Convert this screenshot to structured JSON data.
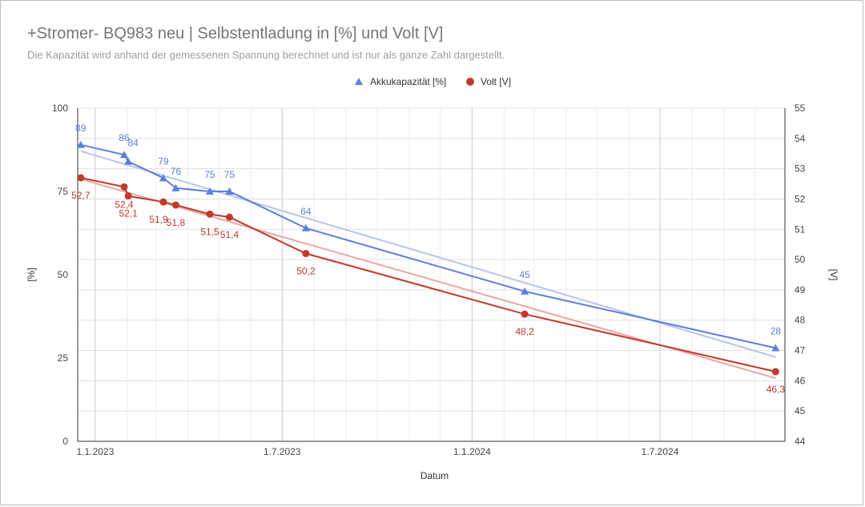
{
  "title": "+Stromer- BQ983 neu | Selbstentladung in [%] und Volt [V]",
  "subtitle": "Die Kapazität wird anhand der gemessenen Spannung berechnet und ist nur als ganze Zahl dargestellt.",
  "colors": {
    "akku": "#5b7fdc",
    "akku_trend": "#b3c5ee",
    "volt": "#c0392b",
    "volt_trend": "#e8a8a0",
    "grid": "#e0e0e0",
    "major_grid": "#cccccc",
    "axis": "#333333"
  },
  "chart_data": {
    "type": "line",
    "xlabel": "Datum",
    "ylabel_left": "[%]",
    "ylabel_right": "[V]",
    "xlim": [
      "2022-12-15",
      "2024-10-30"
    ],
    "ylim_left": [
      0,
      100
    ],
    "ylim_right": [
      44,
      55
    ],
    "x_ticks": [
      {
        "date": "2023-01-01",
        "label": "1.1.2023"
      },
      {
        "date": "2023-07-01",
        "label": "1.7.2023"
      },
      {
        "date": "2024-01-01",
        "label": "1.1.2024"
      },
      {
        "date": "2024-07-01",
        "label": "1.7.2024"
      }
    ],
    "y_ticks_left": [
      {
        "value": 0,
        "label": "0"
      },
      {
        "value": 25,
        "label": "25"
      },
      {
        "value": 50,
        "label": "50"
      },
      {
        "value": 75,
        "label": "75"
      },
      {
        "value": 100,
        "label": "100"
      }
    ],
    "y_ticks_right": [
      {
        "value": 44,
        "label": "44"
      },
      {
        "value": 45,
        "label": "45"
      },
      {
        "value": 46,
        "label": "46"
      },
      {
        "value": 47,
        "label": "47"
      },
      {
        "value": 48,
        "label": "48"
      },
      {
        "value": 49,
        "label": "49"
      },
      {
        "value": 50,
        "label": "50"
      },
      {
        "value": 51,
        "label": "51"
      },
      {
        "value": 52,
        "label": "52"
      },
      {
        "value": 53,
        "label": "53"
      },
      {
        "value": 54,
        "label": "54"
      },
      {
        "value": 55,
        "label": "55"
      }
    ],
    "grid": true,
    "legend_position": "top",
    "series": [
      {
        "name": "Akkukapazität  [%]",
        "axis": "left",
        "marker": "triangle",
        "trendline": true,
        "points": [
          {
            "date": "2022-12-18",
            "value": 89,
            "label": "89"
          },
          {
            "date": "2023-01-29",
            "value": 86,
            "label": "86"
          },
          {
            "date": "2023-02-02",
            "value": 84,
            "label": "84"
          },
          {
            "date": "2023-03-08",
            "value": 79,
            "label": "79"
          },
          {
            "date": "2023-03-20",
            "value": 76,
            "label": "76"
          },
          {
            "date": "2023-04-22",
            "value": 75,
            "label": "75"
          },
          {
            "date": "2023-05-11",
            "value": 75,
            "label": "75"
          },
          {
            "date": "2023-07-24",
            "value": 64,
            "label": "64"
          },
          {
            "date": "2024-02-21",
            "value": 45,
            "label": "45"
          },
          {
            "date": "2024-10-21",
            "value": 28,
            "label": "28"
          }
        ]
      },
      {
        "name": "Volt [V]",
        "axis": "right",
        "marker": "circle",
        "trendline": true,
        "points": [
          {
            "date": "2022-12-18",
            "value": 52.7,
            "label": "52,7"
          },
          {
            "date": "2023-01-29",
            "value": 52.4,
            "label": "52,4"
          },
          {
            "date": "2023-02-02",
            "value": 52.1,
            "label": "52,1"
          },
          {
            "date": "2023-03-08",
            "value": 51.9,
            "label": "51,9"
          },
          {
            "date": "2023-03-20",
            "value": 51.8,
            "label": "51,8"
          },
          {
            "date": "2023-04-22",
            "value": 51.5,
            "label": "51,5"
          },
          {
            "date": "2023-05-11",
            "value": 51.4,
            "label": "51,4"
          },
          {
            "date": "2023-07-24",
            "value": 50.2,
            "label": "50,2"
          },
          {
            "date": "2024-02-21",
            "value": 48.2,
            "label": "48,2"
          },
          {
            "date": "2024-10-21",
            "value": 46.3,
            "label": "46,3"
          }
        ]
      }
    ]
  }
}
